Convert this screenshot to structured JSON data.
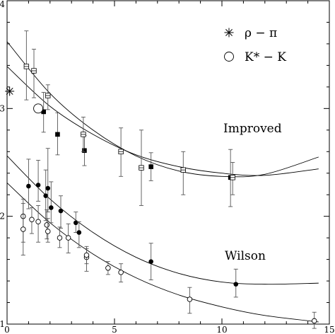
{
  "chart_data": {
    "type": "scatter",
    "xlim": [
      0,
      15
    ],
    "ylim": [
      1,
      4
    ],
    "x_ticks": [
      {
        "v": 0,
        "label": "0"
      },
      {
        "v": 5,
        "label": "5"
      },
      {
        "v": 10,
        "label": "10"
      },
      {
        "v": 15,
        "label": "15"
      }
    ],
    "y_ticks": [
      {
        "v": 1,
        "label": "1"
      },
      {
        "v": 2,
        "label": "2"
      },
      {
        "v": 3,
        "label": "3"
      },
      {
        "v": 4,
        "label": "4"
      }
    ],
    "legend": [
      {
        "marker": "asterisk",
        "label": "ρ − π"
      },
      {
        "marker": "open-circle",
        "label": "K* − K"
      }
    ],
    "annotations": [
      "Improved",
      "Wilson"
    ],
    "reference_points": [
      {
        "marker": "asterisk",
        "x": 0.12,
        "y": 3.16
      },
      {
        "marker": "open-circle",
        "x": 1.45,
        "y": 3.0
      }
    ],
    "series": [
      {
        "group": "Improved",
        "marker": "filled-square",
        "points": [
          {
            "x": 1.7,
            "y": 2.97,
            "lo": 2.78,
            "hi": 3.15
          },
          {
            "x": 2.35,
            "y": 2.76,
            "lo": 2.57,
            "hi": 2.96
          },
          {
            "x": 3.6,
            "y": 2.61,
            "lo": 2.47,
            "hi": 2.75
          },
          {
            "x": 6.7,
            "y": 2.46,
            "lo": 2.33,
            "hi": 2.59
          },
          {
            "x": 10.4,
            "y": 2.36,
            "lo": 2.09,
            "hi": 2.62
          }
        ]
      },
      {
        "group": "Improved",
        "marker": "open-square",
        "points": [
          {
            "x": 0.9,
            "y": 3.39,
            "lo": 3.08,
            "hi": 3.72
          },
          {
            "x": 1.25,
            "y": 3.35,
            "lo": 3.1,
            "hi": 3.55
          },
          {
            "x": 1.9,
            "y": 3.12,
            "lo": 2.99,
            "hi": 3.22
          },
          {
            "x": 3.55,
            "y": 2.76,
            "lo": 2.6,
            "hi": 2.92
          },
          {
            "x": 5.3,
            "y": 2.6,
            "lo": 2.37,
            "hi": 2.82
          },
          {
            "x": 6.25,
            "y": 2.45,
            "lo": 2.1,
            "hi": 2.8
          },
          {
            "x": 8.2,
            "y": 2.43,
            "lo": 2.2,
            "hi": 2.6
          },
          {
            "x": 10.5,
            "y": 2.36,
            "lo": 2.2,
            "hi": 2.5
          }
        ]
      },
      {
        "group": "Wilson",
        "marker": "filled-circle",
        "points": [
          {
            "x": 1.0,
            "y": 2.28,
            "lo": 2.07,
            "hi": 2.53
          },
          {
            "x": 1.45,
            "y": 2.29,
            "lo": 2.14,
            "hi": 2.52
          },
          {
            "x": 1.8,
            "y": 2.19,
            "lo": 1.96,
            "hi": 2.43
          },
          {
            "x": 1.9,
            "y": 2.26,
            "lo": 2.04,
            "hi": 2.63
          },
          {
            "x": 2.05,
            "y": 2.08,
            "lo": 1.94,
            "hi": 2.32
          },
          {
            "x": 2.5,
            "y": 2.05,
            "lo": 1.89,
            "hi": 2.19
          },
          {
            "x": 3.2,
            "y": 1.94,
            "lo": 1.85,
            "hi": 2.04
          },
          {
            "x": 3.35,
            "y": 1.85,
            "lo": 1.71,
            "hi": 1.95
          },
          {
            "x": 6.7,
            "y": 1.58,
            "lo": 1.41,
            "hi": 1.75
          },
          {
            "x": 10.65,
            "y": 1.37,
            "lo": 1.25,
            "hi": 1.51
          }
        ]
      },
      {
        "group": "Wilson",
        "marker": "open-circle",
        "points": [
          {
            "x": 0.75,
            "y": 2.0,
            "lo": 1.76,
            "hi": 2.16
          },
          {
            "x": 0.75,
            "y": 1.88,
            "lo": 1.64,
            "hi": 2.12
          },
          {
            "x": 1.15,
            "y": 1.97,
            "lo": 1.84,
            "hi": 2.08
          },
          {
            "x": 1.45,
            "y": 1.95,
            "lo": 1.76,
            "hi": 2.1
          },
          {
            "x": 1.85,
            "y": 1.92,
            "lo": 1.79,
            "hi": 2.06
          },
          {
            "x": 1.9,
            "y": 1.86,
            "lo": 1.76,
            "hi": 1.98
          },
          {
            "x": 2.45,
            "y": 1.8,
            "lo": 1.71,
            "hi": 1.9
          },
          {
            "x": 2.85,
            "y": 1.8,
            "lo": 1.66,
            "hi": 1.93
          },
          {
            "x": 3.7,
            "y": 1.62,
            "lo": 1.49,
            "hi": 1.7
          },
          {
            "x": 3.7,
            "y": 1.64,
            "lo": 1.56,
            "hi": 1.72
          },
          {
            "x": 4.7,
            "y": 1.52,
            "lo": 1.46,
            "hi": 1.58
          },
          {
            "x": 5.3,
            "y": 1.48,
            "lo": 1.39,
            "hi": 1.56
          },
          {
            "x": 8.5,
            "y": 1.23,
            "lo": 1.1,
            "hi": 1.34
          },
          {
            "x": 14.3,
            "y": 1.03,
            "lo": 0.96,
            "hi": 1.11
          }
        ]
      }
    ],
    "fit_curves": [
      {
        "group": "Improved",
        "x": [
          0,
          2,
          4,
          6,
          8,
          10,
          12,
          14.5
        ],
        "y": [
          3.62,
          3.14,
          2.8,
          2.56,
          2.42,
          2.37,
          2.39,
          2.55
        ]
      },
      {
        "group": "Improved",
        "x": [
          0,
          2,
          4,
          6,
          8,
          10,
          12,
          14.5
        ],
        "y": [
          3.39,
          3.02,
          2.76,
          2.57,
          2.46,
          2.4,
          2.38,
          2.44
        ]
      },
      {
        "group": "Wilson",
        "x": [
          0,
          2,
          4,
          6,
          8,
          10,
          12,
          14.5
        ],
        "y": [
          2.56,
          2.16,
          1.85,
          1.62,
          1.47,
          1.39,
          1.37,
          1.38
        ]
      },
      {
        "group": "Wilson",
        "x": [
          0,
          2,
          4,
          6,
          8,
          10,
          12,
          14.5
        ],
        "y": [
          2.31,
          1.94,
          1.65,
          1.43,
          1.27,
          1.16,
          1.08,
          1.02
        ]
      }
    ]
  }
}
